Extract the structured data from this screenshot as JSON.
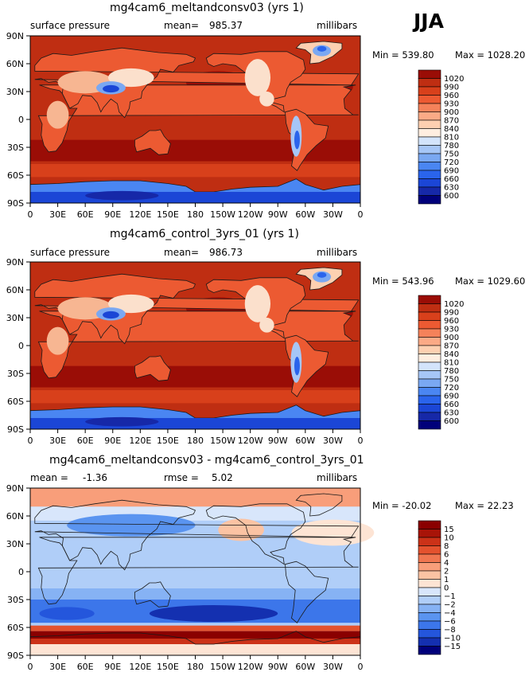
{
  "season": "JJA",
  "colors": {
    "abs_scale": [
      "#00007a",
      "#1628a8",
      "#1b46d6",
      "#2a64ec",
      "#4a86f2",
      "#7aa8f2",
      "#a6c6f6",
      "#d3e4fb",
      "#ffeee0",
      "#fdd0b1",
      "#fbaa86",
      "#f5825a",
      "#ec5a32",
      "#d8401b",
      "#bf2e12",
      "#9a0d06"
    ],
    "diff_scale": [
      "#00007a",
      "#1430b0",
      "#2456dc",
      "#3c76ea",
      "#5a94f0",
      "#86b2f4",
      "#b0cef8",
      "#d8e6fb",
      "#fde4d4",
      "#fbc3a3",
      "#f89e7a",
      "#f07650",
      "#e4522e",
      "#cc3218",
      "#a81408",
      "#8a0000"
    ],
    "land_abs_low": "#fbe0cc",
    "land_abs_mid": "#f7b692",
    "coast": "#1a1a1a"
  },
  "chart_data": [
    {
      "type": "heatmap",
      "title": "mg4cam6_meltandconsv03 (yrs 1)",
      "field": "surface pressure",
      "stat_label": "mean=",
      "stat_value": "985.37",
      "units": "millibars",
      "min_text": "Min = 539.80",
      "max_text": "Max = 1028.20",
      "levels": [
        "1020",
        "990",
        "960",
        "930",
        "900",
        "870",
        "840",
        "810",
        "780",
        "750",
        "720",
        "690",
        "660",
        "630",
        "600"
      ],
      "x_ticks": [
        "0",
        "30E",
        "60E",
        "90E",
        "120E",
        "150E",
        "180",
        "150W",
        "120W",
        "90W",
        "60W",
        "30W",
        "0"
      ],
      "y_ticks": [
        "90N",
        "60N",
        "30N",
        "0",
        "30S",
        "60S",
        "90S"
      ],
      "xlim": [
        0,
        360
      ],
      "ylim": [
        -90,
        90
      ]
    },
    {
      "type": "heatmap",
      "title": "mg4cam6_control_3yrs_01 (yrs 1)",
      "field": "surface pressure",
      "stat_label": "mean=",
      "stat_value": "986.73",
      "units": "millibars",
      "min_text": "Min = 543.96",
      "max_text": "Max = 1029.60",
      "levels": [
        "1020",
        "990",
        "960",
        "930",
        "900",
        "870",
        "840",
        "810",
        "780",
        "750",
        "720",
        "690",
        "660",
        "630",
        "600"
      ],
      "x_ticks": [
        "0",
        "30E",
        "60E",
        "90E",
        "120E",
        "150E",
        "180",
        "150W",
        "120W",
        "90W",
        "60W",
        "30W",
        "0"
      ],
      "y_ticks": [
        "90N",
        "60N",
        "30N",
        "0",
        "30S",
        "60S",
        "90S"
      ],
      "xlim": [
        0,
        360
      ],
      "ylim": [
        -90,
        90
      ]
    },
    {
      "type": "heatmap",
      "title": "mg4cam6_meltandconsv03 - mg4cam6_control_3yrs_01",
      "field": "mean =",
      "field_value": "-1.36",
      "stat_label": "rmse =",
      "stat_value": "5.02",
      "units": "millibars",
      "min_text": "Min = -20.02",
      "max_text": "Max = 22.23",
      "levels": [
        "15",
        "10",
        "8",
        "6",
        "4",
        "2",
        "1",
        "0",
        "−1",
        "−2",
        "−4",
        "−6",
        "−8",
        "−10",
        "−15"
      ],
      "x_ticks": [
        "0",
        "30E",
        "60E",
        "90E",
        "120E",
        "150E",
        "180",
        "150W",
        "120W",
        "90W",
        "60W",
        "30W",
        "0"
      ],
      "y_ticks": [
        "90N",
        "60N",
        "30N",
        "0",
        "30S",
        "60S",
        "90S"
      ],
      "xlim": [
        0,
        360
      ],
      "ylim": [
        -90,
        90
      ]
    }
  ]
}
